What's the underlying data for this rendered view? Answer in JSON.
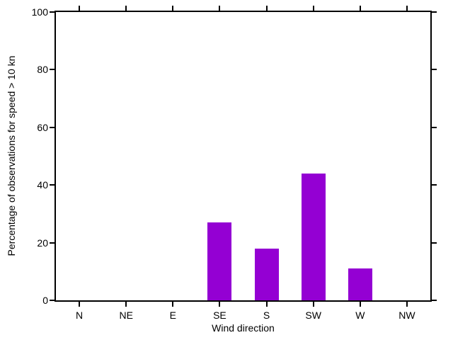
{
  "chart_data": {
    "type": "bar",
    "xlabel": "Wind direction",
    "ylabel": "Percentage of observations for speed > 10 kn",
    "categories": [
      "N",
      "NE",
      "E",
      "SE",
      "S",
      "SW",
      "W",
      "NW"
    ],
    "values": [
      0,
      0,
      0,
      27,
      18,
      44,
      11,
      0
    ],
    "ylim": [
      0,
      100
    ],
    "yticks": [
      0,
      20,
      40,
      60,
      80,
      100
    ],
    "bar_color": "#9400d3",
    "axis_color": "#000000",
    "background_color": "#ffffff",
    "grid": false,
    "legend": false,
    "frame": "box",
    "tick_direction": "out"
  }
}
